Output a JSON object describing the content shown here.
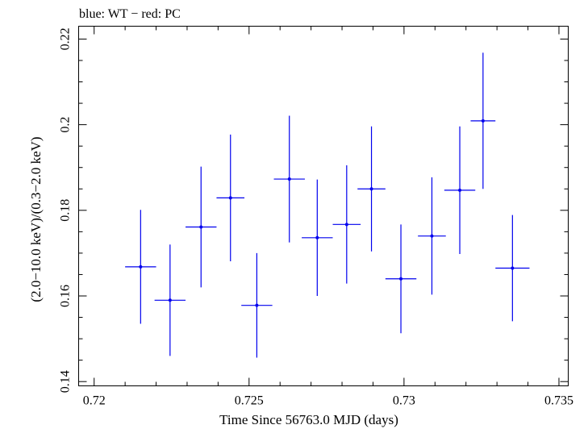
{
  "chart_data": {
    "type": "scatter",
    "title": "blue: WT − red: PC",
    "xlabel": "Time Since 56763.0 MJD (days)",
    "ylabel": "(2.0−10.0 keV)/(0.3−2.0 keV)",
    "xlim": [
      0.7195,
      0.7353
    ],
    "ylim": [
      0.139,
      0.223
    ],
    "x_ticks": [
      0.72,
      0.725,
      0.73,
      0.735
    ],
    "x_tick_labels": [
      "0.72",
      "0.725",
      "0.73",
      "0.735"
    ],
    "y_ticks": [
      0.14,
      0.16,
      0.18,
      0.2,
      0.22
    ],
    "y_tick_labels": [
      "0.14",
      "0.16",
      "0.18",
      "0.2",
      "0.22"
    ],
    "x_minor_step": 0.001,
    "y_minor_step": 0.005,
    "grid": false,
    "series": [
      {
        "name": "WT",
        "color": "#0000ee",
        "points": [
          {
            "x": 0.7215,
            "y": 0.1668,
            "xerr": 0.0005,
            "yerr": 0.0133
          },
          {
            "x": 0.72245,
            "y": 0.159,
            "xerr": 0.0005,
            "yerr": 0.013
          },
          {
            "x": 0.72345,
            "y": 0.1761,
            "xerr": 0.0005,
            "yerr": 0.0141
          },
          {
            "x": 0.7244,
            "y": 0.1829,
            "xerr": 0.00045,
            "yerr": 0.0148
          },
          {
            "x": 0.72525,
            "y": 0.1578,
            "xerr": 0.0005,
            "yerr": 0.0122
          },
          {
            "x": 0.7263,
            "y": 0.1873,
            "xerr": 0.0005,
            "yerr": 0.0148
          },
          {
            "x": 0.7272,
            "y": 0.1736,
            "xerr": 0.0005,
            "yerr": 0.0136
          },
          {
            "x": 0.72815,
            "y": 0.1767,
            "xerr": 0.00045,
            "yerr": 0.0138
          },
          {
            "x": 0.72895,
            "y": 0.185,
            "xerr": 0.00045,
            "yerr": 0.0146
          },
          {
            "x": 0.7299,
            "y": 0.164,
            "xerr": 0.0005,
            "yerr": 0.0127
          },
          {
            "x": 0.7309,
            "y": 0.174,
            "xerr": 0.00045,
            "yerr": 0.0137
          },
          {
            "x": 0.7318,
            "y": 0.1847,
            "xerr": 0.0005,
            "yerr": 0.0149
          },
          {
            "x": 0.73255,
            "y": 0.2009,
            "xerr": 0.0004,
            "yerr": 0.0159
          },
          {
            "x": 0.7335,
            "y": 0.1665,
            "xerr": 0.00055,
            "yerr": 0.0124
          }
        ]
      }
    ]
  }
}
